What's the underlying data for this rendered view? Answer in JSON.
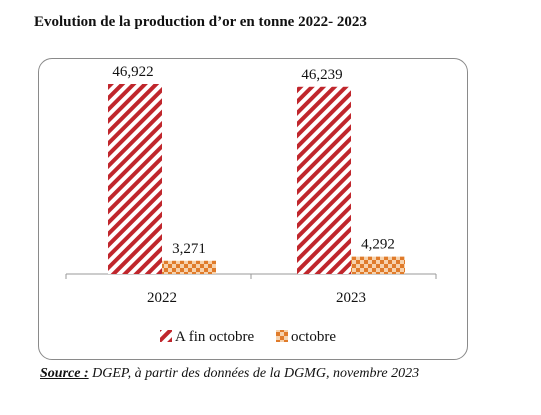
{
  "title": "Evolution de la production d’or en tonne 2022- 2023",
  "source": {
    "label": "Source :",
    "text": " DGEP, à partir des données de la DGMG, novembre 2023"
  },
  "chart_data": {
    "type": "bar",
    "categories": [
      "2022",
      "2023"
    ],
    "series": [
      {
        "name": "A fin octobre",
        "values": [
          46.922,
          46.239
        ],
        "labels": [
          "46,922",
          "46,239"
        ],
        "color": "#c0262c",
        "pattern": "diagonal-stripes"
      },
      {
        "name": "octobre",
        "values": [
          3.271,
          4.292
        ],
        "labels": [
          "3,271",
          "4,292"
        ],
        "color": "#e07b2a",
        "pattern": "checker"
      }
    ],
    "ylim": [
      0,
      55
    ],
    "grid": false,
    "legend_position": "bottom",
    "xlabel": "",
    "ylabel": ""
  }
}
